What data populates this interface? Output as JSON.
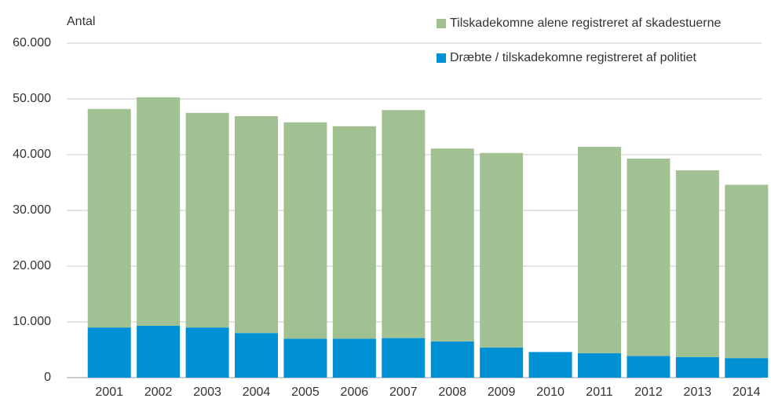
{
  "chart_data": {
    "type": "stacked_bar",
    "y_label": "Antal",
    "categories": [
      "2001",
      "2002",
      "2003",
      "2004",
      "2005",
      "2006",
      "2007",
      "2008",
      "2009",
      "2010",
      "2011",
      "2012",
      "2013",
      "2014"
    ],
    "series": [
      {
        "name": "Dræbte / tilskadekomne registreret af politiet",
        "color": "#0091d4",
        "values": [
          9000,
          9300,
          9000,
          8000,
          7000,
          7000,
          7100,
          6500,
          5400,
          4600,
          4400,
          3900,
          3700,
          3500
        ]
      },
      {
        "name": "Tilskadekomne alene registreret af skadestuerne",
        "color": "#a1c193",
        "values": [
          39200,
          41000,
          38500,
          38900,
          38800,
          38100,
          40900,
          34600,
          34900,
          null,
          37000,
          35400,
          33500,
          31100
        ]
      }
    ],
    "ylim": [
      0,
      60000
    ],
    "yticks": [
      0,
      {
        "value": 10000,
        "label": "10.000"
      },
      {
        "value": 20000,
        "label": "20.000"
      },
      {
        "value": 30000,
        "label": "30.000"
      },
      {
        "value": 40000,
        "label": "40.000"
      },
      {
        "value": 50000,
        "label": "50.000"
      },
      {
        "value": 60000,
        "label": "60.000"
      }
    ],
    "grid": true
  }
}
